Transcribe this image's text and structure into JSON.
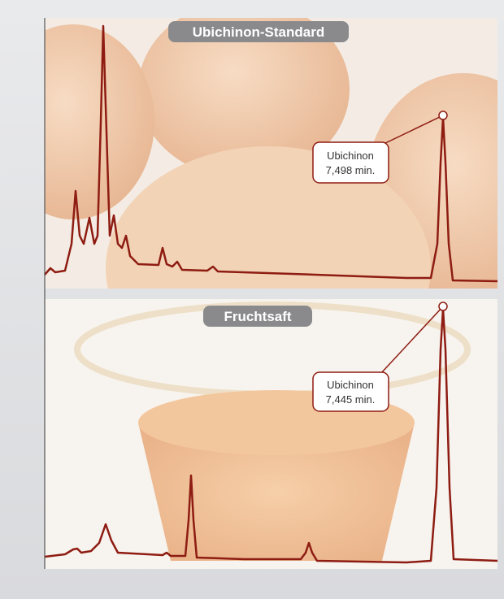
{
  "panels": [
    {
      "title": "Ubichinon-Standard",
      "annotation": {
        "name": "Ubichinon",
        "time": "7,498 min."
      }
    },
    {
      "title": "Fruchtsaft",
      "annotation": {
        "name": "Ubichinon",
        "time": "7,445 min."
      }
    }
  ]
}
